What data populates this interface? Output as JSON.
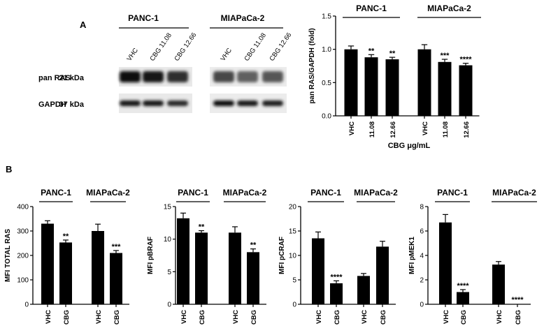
{
  "panels": {
    "a_label": "A",
    "b_label": "B"
  },
  "western_blot": {
    "group1": "PANC-1",
    "group2": "MIAPaCa-2",
    "lanes": [
      "VHC",
      "CBG 11.08",
      "CBG 12.66",
      "VHC",
      "CBG 11.08",
      "CBG 12.66"
    ],
    "rows": [
      {
        "protein": "pan RAS",
        "size": "21 kDa",
        "intensity": [
          0.95,
          0.92,
          0.82,
          0.72,
          0.62,
          0.66
        ]
      },
      {
        "protein": "GAPDH",
        "size": "37 kDa",
        "intensity": [
          0.92,
          0.9,
          0.85,
          0.95,
          0.9,
          0.88
        ]
      }
    ]
  },
  "chart_data": [
    {
      "type": "bar",
      "groups": [
        "PANC-1",
        "MIAPaCa-2"
      ],
      "categories": [
        "VHC",
        "11.08",
        "12.66",
        "VHC",
        "11.08",
        "12.66"
      ],
      "values": [
        1.0,
        0.88,
        0.85,
        1.0,
        0.81,
        0.76
      ],
      "errors": [
        0.05,
        0.04,
        0.03,
        0.07,
        0.04,
        0.03
      ],
      "significance": [
        "",
        "**",
        "**",
        "",
        "***",
        "****"
      ],
      "ylabel": "pan RAS/GAPDH (fold)",
      "xlabel": "CBG μg/mL",
      "ylim": [
        0.0,
        1.5
      ],
      "yticks": [
        "0.0",
        "0.5",
        "1.0",
        "1.5"
      ]
    },
    {
      "type": "bar",
      "groups": [
        "PANC-1",
        "MIAPaCa-2"
      ],
      "categories": [
        "VHC",
        "CBG",
        "VHC",
        "CBG"
      ],
      "values": [
        330,
        253,
        300,
        210
      ],
      "errors": [
        12,
        10,
        28,
        10
      ],
      "significance": [
        "",
        "**",
        "",
        "***"
      ],
      "ylabel": "MFI TOTAL RAS",
      "ylim": [
        0,
        400
      ],
      "yticks": [
        "0",
        "100",
        "200",
        "300",
        "400"
      ]
    },
    {
      "type": "bar",
      "groups": [
        "PANC-1",
        "MIAPaCa-2"
      ],
      "categories": [
        "VHC",
        "CBG",
        "VHC",
        "CBG"
      ],
      "values": [
        13.2,
        11.0,
        11.0,
        8.0
      ],
      "errors": [
        0.8,
        0.3,
        0.9,
        0.5
      ],
      "significance": [
        "",
        "**",
        "",
        "**"
      ],
      "ylabel": "MFI pBRAF",
      "ylim": [
        0,
        15
      ],
      "yticks": [
        "0",
        "5",
        "10",
        "15"
      ]
    },
    {
      "type": "bar",
      "groups": [
        "PANC-1",
        "MIAPaCa-2"
      ],
      "categories": [
        "VHC",
        "CBG",
        "VHC",
        "CBG"
      ],
      "values": [
        13.5,
        4.3,
        5.8,
        11.8
      ],
      "errors": [
        1.3,
        0.5,
        0.5,
        1.1
      ],
      "significance": [
        "",
        "****",
        "",
        ""
      ],
      "ylabel": "MFI pCRAF",
      "ylim": [
        0,
        20
      ],
      "yticks": [
        "0",
        "5",
        "10",
        "15",
        "20"
      ]
    },
    {
      "type": "bar",
      "groups": [
        "PANC-1",
        "MIAPaCa-2"
      ],
      "categories": [
        "VHC",
        "CBG",
        "VHC",
        "CBG"
      ],
      "values": [
        6.7,
        1.0,
        3.25,
        0.0
      ],
      "errors": [
        0.65,
        0.2,
        0.25,
        0.0
      ],
      "significance": [
        "",
        "****",
        "",
        "****"
      ],
      "ylabel": "MFI pMEK1",
      "ylim": [
        0,
        8
      ],
      "yticks": [
        "0",
        "2",
        "4",
        "6",
        "8"
      ]
    }
  ]
}
